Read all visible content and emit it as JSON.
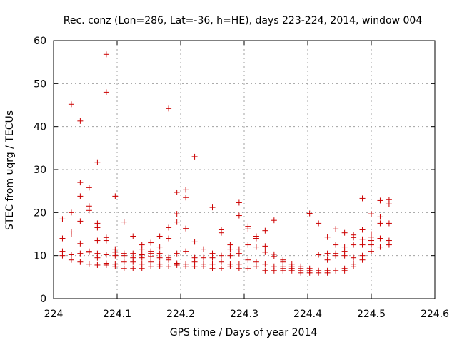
{
  "chart_data": {
    "type": "scatter",
    "title": "Rec. conz (Lon=286, Lat=-36, h=HE), days 223-224, 2014, window 004",
    "xlabel": "GPS time / Days of year 2014",
    "ylabel": "STEC from uqrg / TECUs",
    "xlim": [
      224,
      224.6
    ],
    "ylim": [
      0,
      60
    ],
    "xticks": [
      "224",
      "224.1",
      "224.2",
      "224.3",
      "224.4",
      "224.5",
      "224.6"
    ],
    "yticks": [
      "0",
      "10",
      "20",
      "30",
      "40",
      "50",
      "60"
    ],
    "grid": true,
    "marker": "+",
    "color": "#cc0000",
    "series": [
      {
        "name": "STEC",
        "points": [
          [
            224.014,
            18.5
          ],
          [
            224.014,
            14.0
          ],
          [
            224.014,
            11.0
          ],
          [
            224.014,
            10.0
          ],
          [
            224.028,
            45.2
          ],
          [
            224.028,
            20.0
          ],
          [
            224.028,
            15.5
          ],
          [
            224.028,
            15.0
          ],
          [
            224.028,
            10.2
          ],
          [
            224.028,
            9.0
          ],
          [
            224.042,
            41.3
          ],
          [
            224.042,
            27.0
          ],
          [
            224.042,
            23.8
          ],
          [
            224.042,
            18.0
          ],
          [
            224.042,
            12.8
          ],
          [
            224.042,
            10.5
          ],
          [
            224.042,
            8.5
          ],
          [
            224.056,
            25.8
          ],
          [
            224.056,
            21.5
          ],
          [
            224.056,
            20.5
          ],
          [
            224.056,
            11.0
          ],
          [
            224.056,
            10.8
          ],
          [
            224.056,
            8.0
          ],
          [
            224.069,
            31.7
          ],
          [
            224.069,
            17.5
          ],
          [
            224.069,
            16.5
          ],
          [
            224.069,
            13.5
          ],
          [
            224.069,
            10.5
          ],
          [
            224.069,
            9.5
          ],
          [
            224.069,
            7.8
          ],
          [
            224.083,
            56.8
          ],
          [
            224.083,
            48.0
          ],
          [
            224.083,
            14.2
          ],
          [
            224.083,
            13.5
          ],
          [
            224.083,
            10.2
          ],
          [
            224.083,
            8.2
          ],
          [
            224.083,
            7.8
          ],
          [
            224.097,
            23.8
          ],
          [
            224.097,
            11.5
          ],
          [
            224.097,
            10.8
          ],
          [
            224.097,
            10.0
          ],
          [
            224.097,
            8.0
          ],
          [
            224.097,
            7.5
          ],
          [
            224.111,
            17.8
          ],
          [
            224.111,
            10.5
          ],
          [
            224.111,
            10.0
          ],
          [
            224.111,
            8.5
          ],
          [
            224.111,
            7.0
          ],
          [
            224.125,
            14.5
          ],
          [
            224.125,
            10.5
          ],
          [
            224.125,
            9.5
          ],
          [
            224.125,
            8.5
          ],
          [
            224.125,
            7.0
          ],
          [
            224.139,
            12.5
          ],
          [
            224.139,
            11.5
          ],
          [
            224.139,
            10.2
          ],
          [
            224.139,
            9.5
          ],
          [
            224.139,
            8.0
          ],
          [
            224.139,
            7.0
          ],
          [
            224.153,
            13.0
          ],
          [
            224.153,
            11.0
          ],
          [
            224.153,
            10.5
          ],
          [
            224.153,
            9.8
          ],
          [
            224.153,
            8.5
          ],
          [
            224.153,
            7.5
          ],
          [
            224.167,
            14.5
          ],
          [
            224.167,
            12.0
          ],
          [
            224.167,
            10.5
          ],
          [
            224.167,
            9.5
          ],
          [
            224.167,
            8.0
          ],
          [
            224.167,
            7.5
          ],
          [
            224.181,
            44.2
          ],
          [
            224.181,
            16.5
          ],
          [
            224.181,
            14.0
          ],
          [
            224.181,
            9.5
          ],
          [
            224.181,
            9.0
          ],
          [
            224.181,
            7.5
          ],
          [
            224.194,
            24.7
          ],
          [
            224.194,
            19.7
          ],
          [
            224.194,
            17.8
          ],
          [
            224.194,
            10.5
          ],
          [
            224.194,
            8.2
          ],
          [
            224.194,
            7.8
          ],
          [
            224.208,
            25.3
          ],
          [
            224.208,
            23.5
          ],
          [
            224.208,
            16.3
          ],
          [
            224.208,
            11.0
          ],
          [
            224.208,
            8.0
          ],
          [
            224.208,
            7.5
          ],
          [
            224.222,
            33.0
          ],
          [
            224.222,
            13.2
          ],
          [
            224.222,
            9.5
          ],
          [
            224.222,
            8.5
          ],
          [
            224.222,
            7.5
          ],
          [
            224.236,
            11.5
          ],
          [
            224.236,
            9.5
          ],
          [
            224.236,
            8.0
          ],
          [
            224.236,
            7.5
          ],
          [
            224.25,
            21.2
          ],
          [
            224.25,
            10.5
          ],
          [
            224.25,
            9.5
          ],
          [
            224.25,
            8.0
          ],
          [
            224.25,
            7.0
          ],
          [
            224.264,
            16.0
          ],
          [
            224.264,
            15.3
          ],
          [
            224.264,
            10.0
          ],
          [
            224.264,
            8.5
          ],
          [
            224.264,
            7.0
          ],
          [
            224.278,
            12.5
          ],
          [
            224.278,
            11.5
          ],
          [
            224.278,
            10.0
          ],
          [
            224.278,
            8.0
          ],
          [
            224.278,
            7.5
          ],
          [
            224.292,
            22.3
          ],
          [
            224.292,
            19.3
          ],
          [
            224.292,
            11.5
          ],
          [
            224.292,
            10.5
          ],
          [
            224.292,
            8.0
          ],
          [
            224.292,
            7.0
          ],
          [
            224.306,
            16.8
          ],
          [
            224.306,
            16.2
          ],
          [
            224.306,
            12.5
          ],
          [
            224.306,
            9.0
          ],
          [
            224.306,
            7.0
          ],
          [
            224.319,
            14.5
          ],
          [
            224.319,
            14.0
          ],
          [
            224.319,
            12.0
          ],
          [
            224.319,
            8.5
          ],
          [
            224.319,
            7.5
          ],
          [
            224.333,
            15.8
          ],
          [
            224.333,
            12.2
          ],
          [
            224.333,
            10.8
          ],
          [
            224.333,
            8.0
          ],
          [
            224.333,
            6.5
          ],
          [
            224.347,
            18.2
          ],
          [
            224.347,
            10.3
          ],
          [
            224.347,
            9.8
          ],
          [
            224.347,
            7.5
          ],
          [
            224.347,
            6.5
          ],
          [
            224.361,
            9.0
          ],
          [
            224.361,
            8.5
          ],
          [
            224.361,
            7.5
          ],
          [
            224.361,
            7.0
          ],
          [
            224.361,
            6.5
          ],
          [
            224.375,
            8.0
          ],
          [
            224.375,
            7.5
          ],
          [
            224.375,
            7.0
          ],
          [
            224.375,
            6.5
          ],
          [
            224.389,
            7.5
          ],
          [
            224.389,
            7.0
          ],
          [
            224.389,
            6.5
          ],
          [
            224.389,
            6.0
          ],
          [
            224.403,
            19.8
          ],
          [
            224.403,
            7.0
          ],
          [
            224.403,
            6.5
          ],
          [
            224.403,
            6.0
          ],
          [
            224.417,
            17.5
          ],
          [
            224.417,
            10.2
          ],
          [
            224.417,
            6.5
          ],
          [
            224.417,
            6.0
          ],
          [
            224.431,
            14.3
          ],
          [
            224.431,
            10.5
          ],
          [
            224.431,
            9.0
          ],
          [
            224.431,
            6.5
          ],
          [
            224.431,
            6.0
          ],
          [
            224.444,
            16.2
          ],
          [
            224.444,
            12.5
          ],
          [
            224.444,
            10.5
          ],
          [
            224.444,
            10.0
          ],
          [
            224.444,
            6.5
          ],
          [
            224.458,
            15.3
          ],
          [
            224.458,
            12.0
          ],
          [
            224.458,
            11.0
          ],
          [
            224.458,
            10.0
          ],
          [
            224.458,
            7.0
          ],
          [
            224.458,
            6.5
          ],
          [
            224.472,
            14.8
          ],
          [
            224.472,
            14.2
          ],
          [
            224.472,
            12.5
          ],
          [
            224.472,
            9.5
          ],
          [
            224.472,
            8.0
          ],
          [
            224.472,
            7.5
          ],
          [
            224.486,
            23.3
          ],
          [
            224.486,
            16.0
          ],
          [
            224.486,
            13.8
          ],
          [
            224.486,
            12.5
          ],
          [
            224.486,
            10.0
          ],
          [
            224.486,
            9.0
          ],
          [
            224.5,
            19.7
          ],
          [
            224.5,
            15.0
          ],
          [
            224.5,
            14.3
          ],
          [
            224.5,
            13.5
          ],
          [
            224.5,
            12.5
          ],
          [
            224.5,
            11.0
          ],
          [
            224.514,
            22.8
          ],
          [
            224.514,
            19.0
          ],
          [
            224.514,
            17.5
          ],
          [
            224.514,
            14.0
          ],
          [
            224.514,
            12.0
          ],
          [
            224.528,
            23.0
          ],
          [
            224.528,
            22.0
          ],
          [
            224.528,
            17.5
          ],
          [
            224.528,
            13.5
          ],
          [
            224.528,
            12.5
          ]
        ]
      }
    ]
  }
}
